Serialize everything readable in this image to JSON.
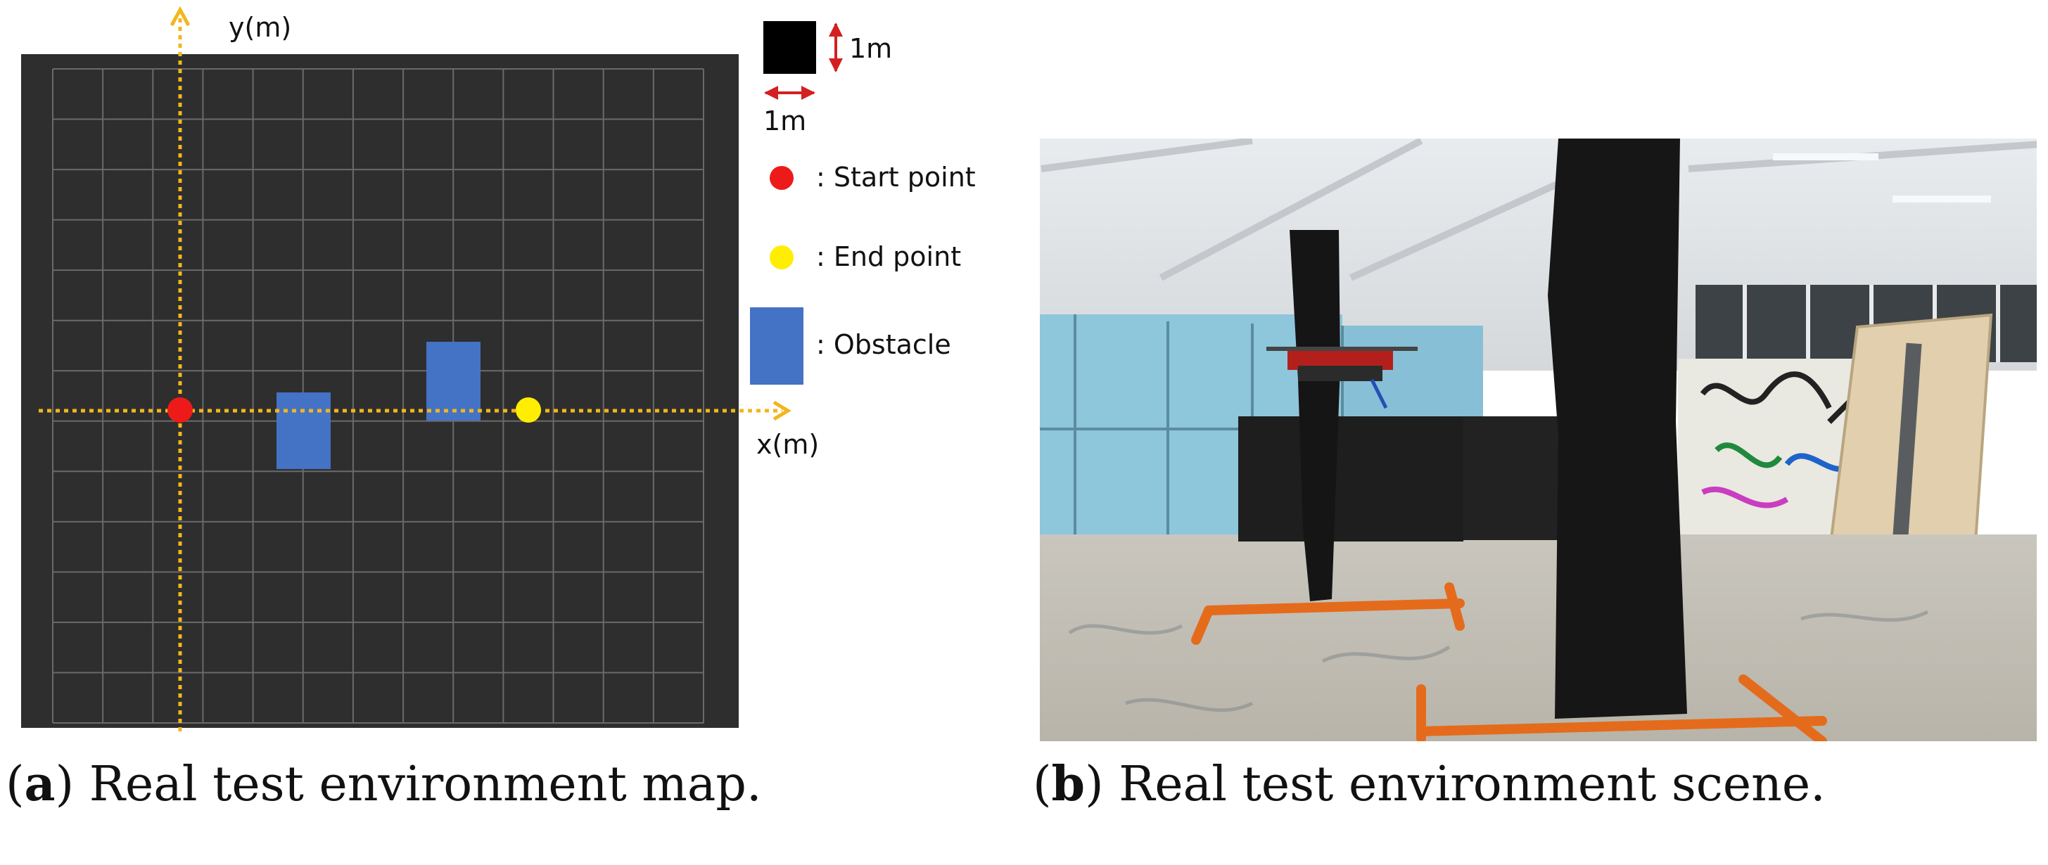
{
  "panel_a": {
    "axis_x_label": "x(m)",
    "axis_y_label": "y(m)",
    "colors": {
      "background": "#2e2e2e",
      "grid": "#6a6a6a",
      "axis": "#f2b61c",
      "start": "#ee1a1a",
      "end": "#ffee00",
      "obstacle": "#4472c4"
    },
    "legend": {
      "scale_width_label": "1m",
      "scale_height_label": "1m",
      "start_label": ": Start point",
      "end_label": ": End point",
      "obstacle_label": ": Obstacle"
    },
    "caption_letter": "a",
    "caption_text": "Real test environment map."
  },
  "panel_b": {
    "caption_letter": "b",
    "caption_text": "Real test environment scene."
  }
}
